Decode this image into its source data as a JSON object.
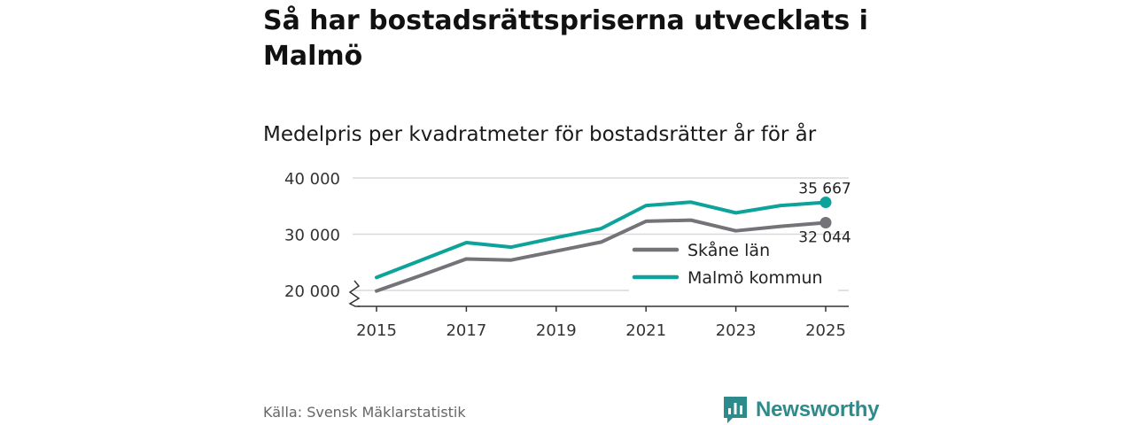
{
  "title": "Så har bostadsrättspriserna utvecklats i Malmö",
  "subtitle": "Medelpris per kvadratmeter för bostadsrätter år för år",
  "source": "Källa: Svensk Mäklarstatistik",
  "brand": "Newsworthy",
  "colors": {
    "skane": "#747378",
    "malmo": "#0ea39a",
    "grid": "#d9d9d9",
    "axis": "#333333"
  },
  "chart_data": {
    "type": "line",
    "x": [
      2015,
      2016,
      2017,
      2018,
      2019,
      2020,
      2021,
      2022,
      2023,
      2024,
      2025
    ],
    "x_tick_labels": [
      "2015",
      "2017",
      "2019",
      "2021",
      "2023",
      "2025"
    ],
    "y_tick_values": [
      20000,
      30000,
      40000
    ],
    "y_tick_labels": [
      "20 000",
      "30 000",
      "40 000"
    ],
    "ylim": [
      18000,
      40000
    ],
    "axis_break": true,
    "series": [
      {
        "name": "Skåne län",
        "values": [
          19900,
          22700,
          25600,
          25400,
          27000,
          28600,
          32300,
          32500,
          30600,
          31400,
          32044
        ],
        "end_label": "32 044"
      },
      {
        "name": "Malmö kommun",
        "values": [
          22300,
          25400,
          28500,
          27700,
          29400,
          31000,
          35100,
          35700,
          33800,
          35100,
          35667
        ],
        "end_label": "35 667"
      }
    ],
    "legend_position": "inside-right"
  }
}
